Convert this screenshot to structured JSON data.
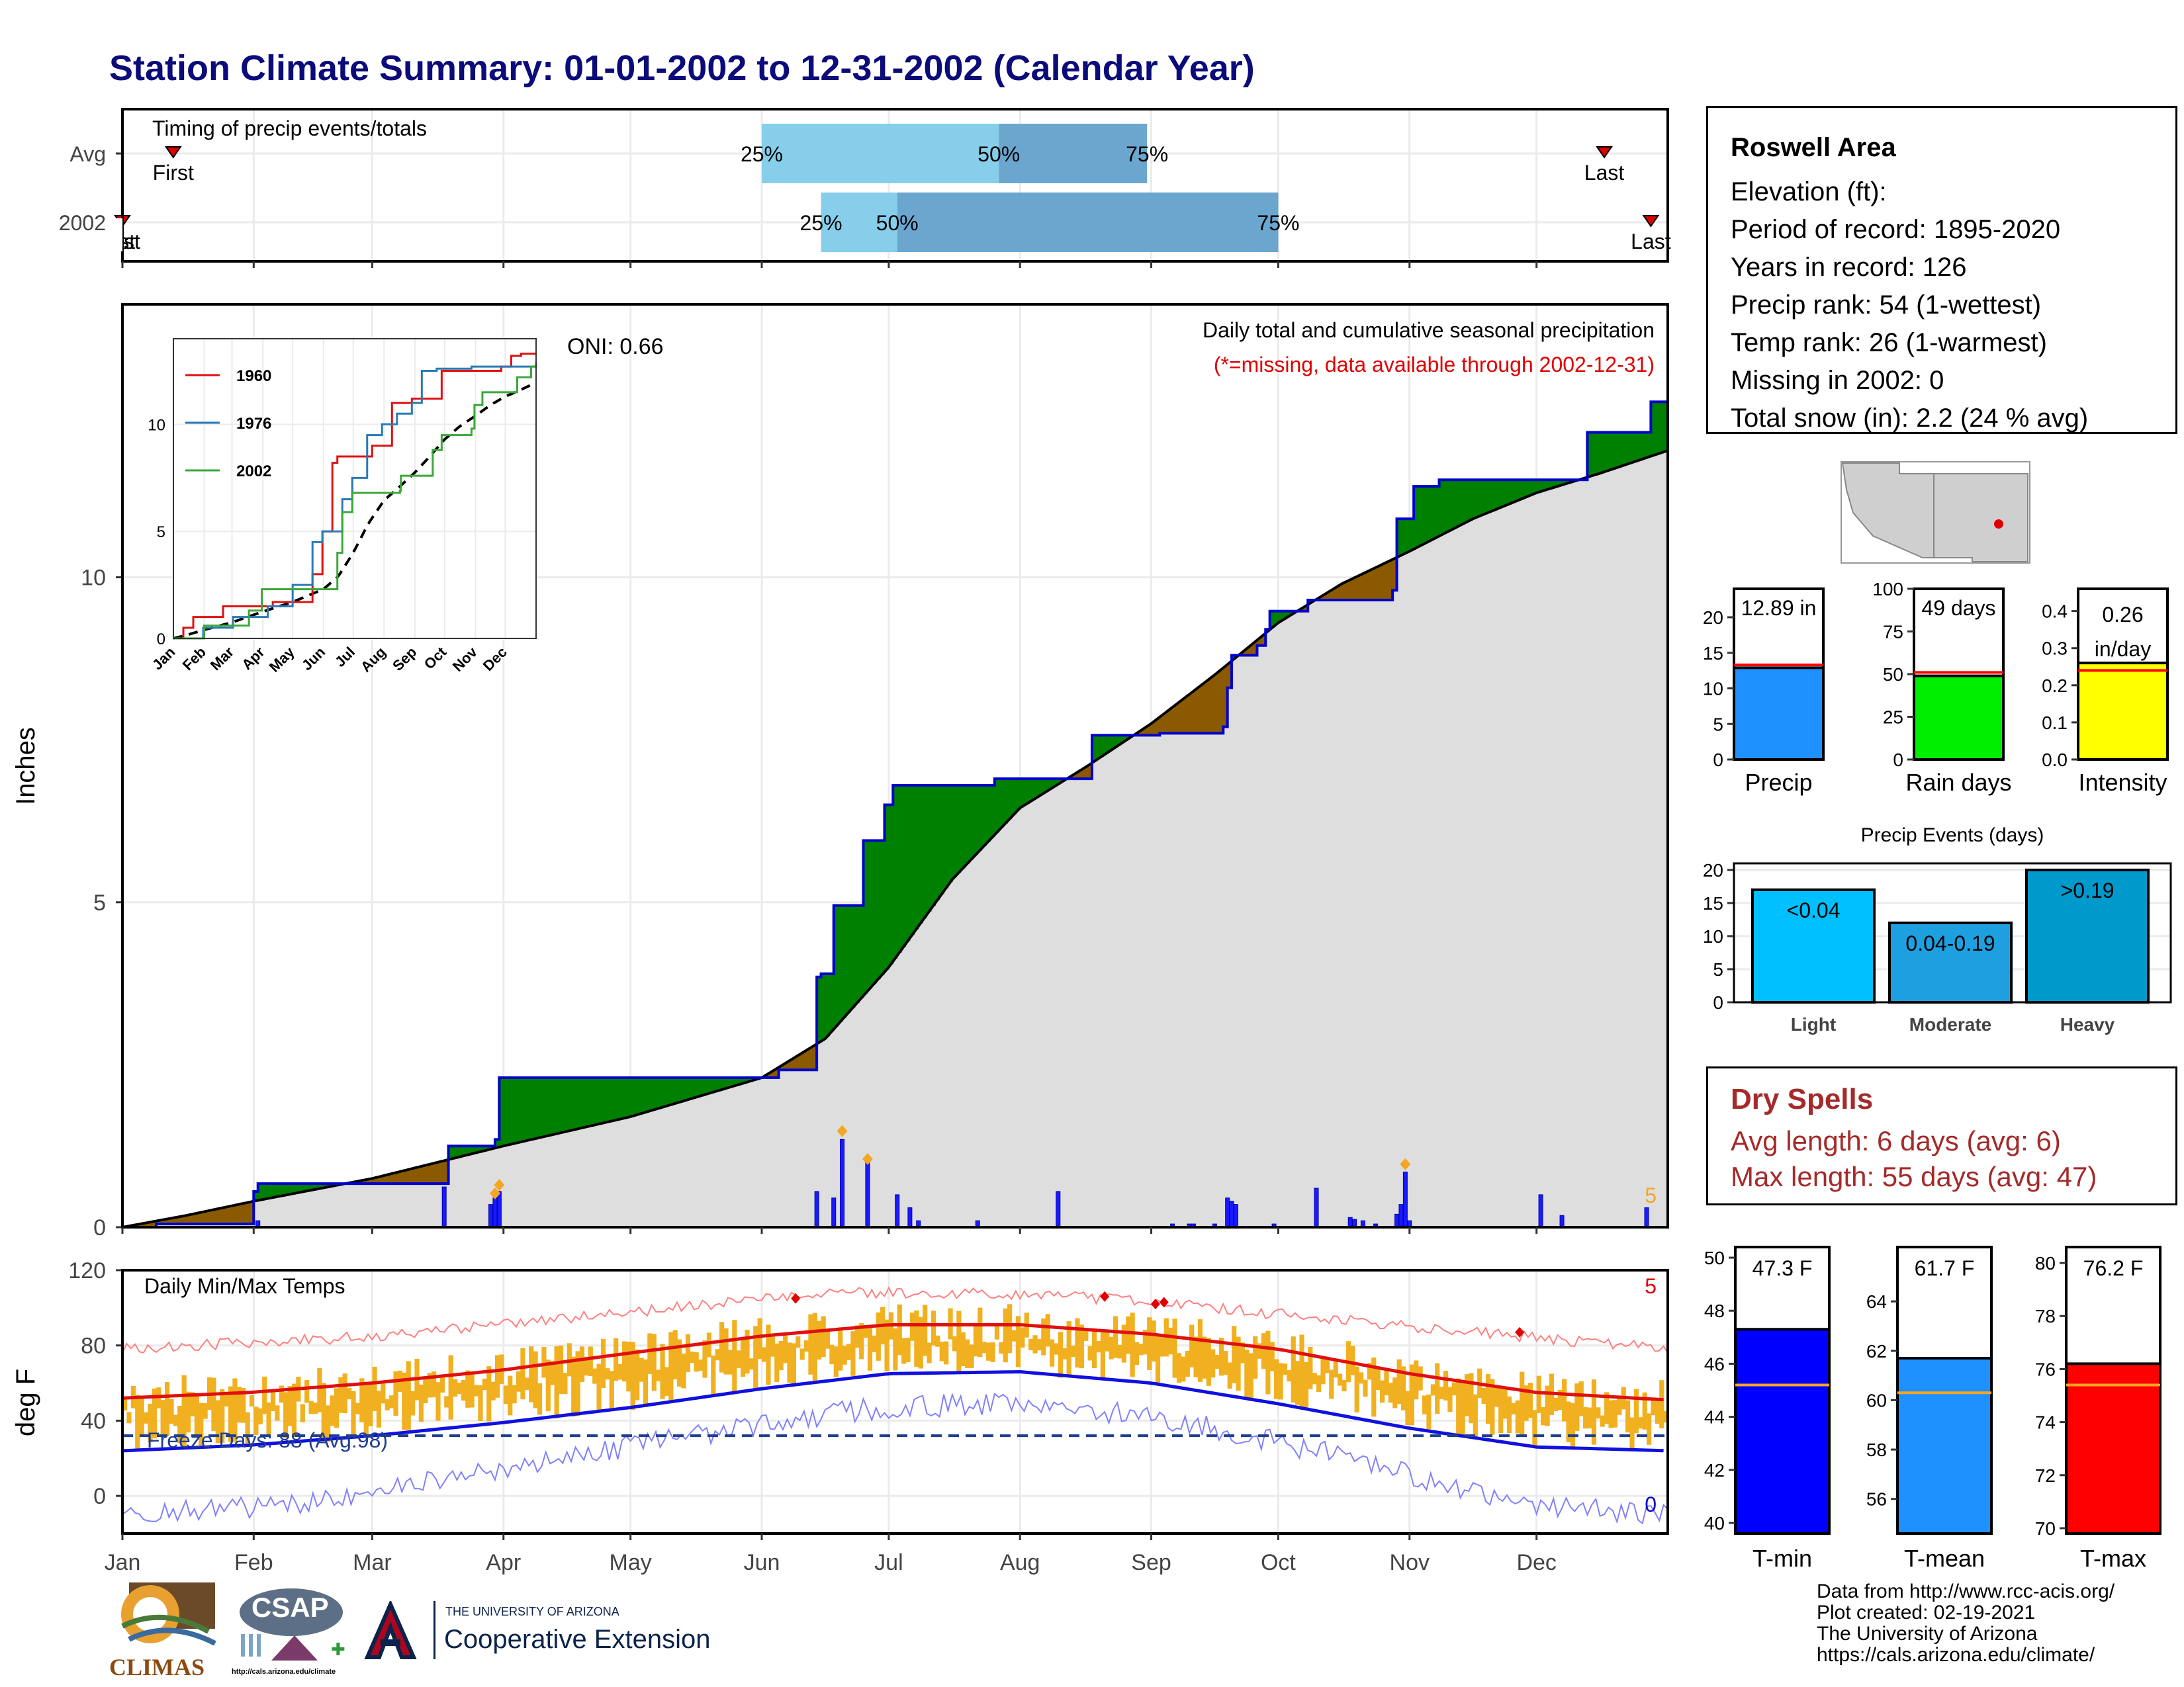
{
  "title": "Station Climate Summary: 01-01-2002 to 12-31-2002 (Calendar Year)",
  "station": {
    "name": "Roswell Area",
    "lines": [
      "Elevation (ft):",
      "Period of record: 1895-2020",
      "Years in record: 126",
      "Precip rank: 54 (1-wettest)",
      "Temp rank: 26 (1-warmest)",
      "Missing in 2002: 0",
      "Total snow (in): 2.2 (24 % avg)"
    ]
  },
  "dry_spells": {
    "title": "Dry Spells",
    "avg": "Avg length: 6 days (avg: 6)",
    "max": "Max length: 55 days (avg: 47)"
  },
  "credits": [
    "Data from http://www.rcc-acis.org/",
    "Plot created: 02-19-2021",
    "The University of Arizona",
    "https://cals.arizona.edu/climate/"
  ],
  "logos": {
    "climas": "CLIMAS",
    "csap": "CSAP",
    "csap_url": "http://cals.arizona.edu/climate",
    "ua_top": "THE UNIVERSITY OF ARIZONA",
    "ua_bottom": "Cooperative Extension"
  },
  "colors": {
    "title": "#0b0b7a",
    "light_blue": "#87ceeb",
    "mid_blue": "#6ba6cf",
    "green_above": "#008000",
    "brown_below": "#8b5a00",
    "cum_line": "#0000cd",
    "grey_area": "#dedede",
    "tmax": "#e01010",
    "tmin": "#1010e0",
    "bars_orange": "#f0b020"
  },
  "chart_data": [
    {
      "id": "timing",
      "type": "bar",
      "title": "Timing of precip events/totals",
      "rows": [
        "Avg",
        "2002"
      ],
      "first_label": "First",
      "last_label": "Last",
      "avg": {
        "first": "01-13",
        "q25": "06-01",
        "q50": "07-27",
        "q75": "08-31",
        "last": "12-17"
      },
      "y2002": {
        "first": "01-01",
        "q25": "06-15",
        "q50": "07-03",
        "q75": "10-01",
        "last": "12-28"
      },
      "pct_labels": [
        "25%",
        "50%",
        "75%"
      ]
    },
    {
      "id": "precip",
      "type": "area",
      "title": "Daily total and cumulative seasonal precipitation",
      "subtitle": "(*=missing, data available through 2002-12-31)",
      "ylabel": "Inches",
      "ylim": [
        0,
        14.2
      ],
      "yticks": [
        0,
        5,
        10
      ],
      "oni": "ONI: 0.66",
      "corner_label": "5",
      "cumulative_2002": [
        [
          0,
          0
        ],
        [
          8,
          0.05
        ],
        [
          30,
          0.05
        ],
        [
          31,
          0.55
        ],
        [
          32,
          0.67
        ],
        [
          50,
          0.67
        ],
        [
          76,
          0.67
        ],
        [
          77,
          1.25
        ],
        [
          84,
          1.25
        ],
        [
          88,
          1.35
        ],
        [
          89,
          2.3
        ],
        [
          140,
          2.3
        ],
        [
          155,
          2.42
        ],
        [
          164,
          3.85
        ],
        [
          165,
          3.9
        ],
        [
          168,
          4.95
        ],
        [
          175,
          5.95
        ],
        [
          180,
          6.5
        ],
        [
          182,
          6.8
        ],
        [
          206,
          6.9
        ],
        [
          228,
          6.9
        ],
        [
          229,
          7.57
        ],
        [
          241,
          7.57
        ],
        [
          245,
          7.6
        ],
        [
          260,
          7.7
        ],
        [
          261,
          8.3
        ],
        [
          262,
          8.8
        ],
        [
          268,
          8.95
        ],
        [
          270,
          9.2
        ],
        [
          271,
          9.48
        ],
        [
          278,
          9.48
        ],
        [
          280,
          9.65
        ],
        [
          300,
          9.8
        ],
        [
          301,
          10.9
        ],
        [
          305,
          11.4
        ],
        [
          311,
          11.5
        ],
        [
          345,
          11.5
        ],
        [
          346,
          12.23
        ],
        [
          360,
          12.23
        ],
        [
          361,
          12.7
        ],
        [
          365,
          12.89
        ]
      ],
      "cumulative_avg": [
        [
          0,
          0
        ],
        [
          15,
          0.18
        ],
        [
          31,
          0.4
        ],
        [
          59,
          0.75
        ],
        [
          90,
          1.25
        ],
        [
          120,
          1.7
        ],
        [
          151,
          2.3
        ],
        [
          166,
          2.9
        ],
        [
          181,
          4.0
        ],
        [
          196,
          5.35
        ],
        [
          212,
          6.45
        ],
        [
          228,
          7.1
        ],
        [
          243,
          7.75
        ],
        [
          258,
          8.5
        ],
        [
          273,
          9.3
        ],
        [
          288,
          9.9
        ],
        [
          304,
          10.4
        ],
        [
          319,
          10.9
        ],
        [
          334,
          11.3
        ],
        [
          349,
          11.6
        ],
        [
          365,
          11.95
        ]
      ],
      "daily": [
        [
          32,
          0.1
        ],
        [
          76,
          0.62
        ],
        [
          87,
          0.35
        ],
        [
          88,
          0.45
        ],
        [
          89,
          0.55
        ],
        [
          164,
          0.55
        ],
        [
          168,
          0.45
        ],
        [
          170,
          1.35
        ],
        [
          176,
          1.0
        ],
        [
          183,
          0.5
        ],
        [
          186,
          0.3
        ],
        [
          188,
          0.1
        ],
        [
          202,
          0.1
        ],
        [
          221,
          0.55
        ],
        [
          248,
          0.05
        ],
        [
          252,
          0.05
        ],
        [
          253,
          0.05
        ],
        [
          258,
          0.05
        ],
        [
          261,
          0.45
        ],
        [
          262,
          0.4
        ],
        [
          263,
          0.35
        ],
        [
          272,
          0.05
        ],
        [
          282,
          0.6
        ],
        [
          290,
          0.15
        ],
        [
          291,
          0.12
        ],
        [
          293,
          0.1
        ],
        [
          296,
          0.05
        ],
        [
          301,
          0.2
        ],
        [
          302,
          0.35
        ],
        [
          303,
          0.85
        ],
        [
          304,
          0.1
        ],
        [
          335,
          0.5
        ],
        [
          340,
          0.18
        ],
        [
          360,
          0.3
        ]
      ],
      "diamonds": [
        [
          88,
          0.52
        ],
        [
          89,
          0.65
        ],
        [
          170,
          1.48
        ],
        [
          176,
          1.05
        ],
        [
          303,
          0.97
        ]
      ]
    },
    {
      "id": "inset",
      "type": "line",
      "series": [
        {
          "name": "1960",
          "color": "#e01010",
          "points": [
            [
              0,
              0
            ],
            [
              10,
              0.5
            ],
            [
              20,
              1.0
            ],
            [
              40,
              1.0
            ],
            [
              50,
              1.5
            ],
            [
              80,
              1.5
            ],
            [
              100,
              1.7
            ],
            [
              130,
              1.7
            ],
            [
              140,
              3.0
            ],
            [
              150,
              5.0
            ],
            [
              160,
              8.2
            ],
            [
              165,
              8.5
            ],
            [
              190,
              8.5
            ],
            [
              200,
              9.0
            ],
            [
              215,
              9.0
            ],
            [
              220,
              11.0
            ],
            [
              240,
              11.2
            ],
            [
              260,
              11.2
            ],
            [
              270,
              12.5
            ],
            [
              300,
              12.5
            ],
            [
              330,
              12.7
            ],
            [
              340,
              13.2
            ],
            [
              350,
              13.3
            ],
            [
              365,
              13.3
            ]
          ]
        },
        {
          "name": "1976",
          "color": "#2a7ab5",
          "points": [
            [
              0,
              0
            ],
            [
              20,
              0
            ],
            [
              30,
              0.5
            ],
            [
              55,
              0.5
            ],
            [
              60,
              1.0
            ],
            [
              90,
              1.0
            ],
            [
              95,
              1.5
            ],
            [
              115,
              1.5
            ],
            [
              120,
              2.5
            ],
            [
              140,
              4.5
            ],
            [
              150,
              5.0
            ],
            [
              170,
              6.5
            ],
            [
              180,
              7.5
            ],
            [
              195,
              9.5
            ],
            [
              210,
              10.0
            ],
            [
              225,
              10.5
            ],
            [
              240,
              11.0
            ],
            [
              250,
              12.5
            ],
            [
              265,
              12.6
            ],
            [
              280,
              12.6
            ],
            [
              300,
              12.7
            ],
            [
              330,
              12.7
            ],
            [
              365,
              12.7
            ]
          ]
        },
        {
          "name": "2002",
          "color": "#3aa83a",
          "points": [
            [
              0,
              0
            ],
            [
              31,
              0.6
            ],
            [
              76,
              1.3
            ],
            [
              89,
              2.3
            ],
            [
              140,
              2.3
            ],
            [
              165,
              4.0
            ],
            [
              170,
              5.9
            ],
            [
              180,
              6.8
            ],
            [
              228,
              6.9
            ],
            [
              229,
              7.6
            ],
            [
              261,
              8.8
            ],
            [
              270,
              9.5
            ],
            [
              300,
              9.8
            ],
            [
              303,
              10.9
            ],
            [
              311,
              11.5
            ],
            [
              346,
              12.2
            ],
            [
              360,
              12.7
            ],
            [
              365,
              12.9
            ]
          ]
        }
      ],
      "ylim": [
        0,
        14
      ],
      "yticks": [
        0,
        5,
        10
      ],
      "months": [
        "Jan",
        "Feb",
        "Mar",
        "Apr",
        "May",
        "Jun",
        "Jul",
        "Aug",
        "Sep",
        "Oct",
        "Nov",
        "Dec"
      ]
    },
    {
      "id": "temps",
      "type": "line",
      "title": "Daily Min/Max Temps",
      "ylabel": "deg F",
      "ylim": [
        -20,
        120
      ],
      "yticks": [
        0,
        40,
        80,
        120
      ],
      "freeze_label": "Freeze Days: 88 (Avg:98)",
      "freeze_line": 32,
      "corner_top": "5",
      "corner_bottom": "0",
      "avg_max": [
        [
          0,
          52
        ],
        [
          30,
          55
        ],
        [
          59,
          60
        ],
        [
          90,
          67
        ],
        [
          120,
          76
        ],
        [
          151,
          85
        ],
        [
          181,
          91
        ],
        [
          212,
          91
        ],
        [
          243,
          86
        ],
        [
          273,
          78
        ],
        [
          304,
          65
        ],
        [
          334,
          55
        ],
        [
          365,
          51
        ]
      ],
      "avg_min": [
        [
          0,
          24
        ],
        [
          30,
          27
        ],
        [
          59,
          32
        ],
        [
          90,
          39
        ],
        [
          120,
          47
        ],
        [
          151,
          57
        ],
        [
          181,
          65
        ],
        [
          212,
          66
        ],
        [
          243,
          60
        ],
        [
          273,
          49
        ],
        [
          304,
          36
        ],
        [
          334,
          26
        ],
        [
          365,
          24
        ]
      ],
      "record_max": [
        [
          0,
          78
        ],
        [
          60,
          85
        ],
        [
          120,
          98
        ],
        [
          170,
          108
        ],
        [
          200,
          108
        ],
        [
          240,
          104
        ],
        [
          280,
          95
        ],
        [
          330,
          85
        ],
        [
          365,
          78
        ]
      ],
      "record_min": [
        [
          0,
          -10
        ],
        [
          40,
          -5
        ],
        [
          90,
          15
        ],
        [
          130,
          30
        ],
        [
          170,
          45
        ],
        [
          210,
          50
        ],
        [
          250,
          40
        ],
        [
          290,
          20
        ],
        [
          330,
          -5
        ],
        [
          365,
          -10
        ]
      ],
      "red_diamonds": [
        [
          159,
          105
        ],
        [
          232,
          106
        ],
        [
          244,
          102
        ],
        [
          246,
          103
        ],
        [
          330,
          87
        ]
      ],
      "months": [
        "Jan",
        "Feb",
        "Mar",
        "Apr",
        "May",
        "Jun",
        "Jul",
        "Aug",
        "Sep",
        "Oct",
        "Nov",
        "Dec"
      ]
    },
    {
      "id": "mini_precip",
      "type": "bar",
      "panels": [
        {
          "label": "Precip",
          "value": 12.89,
          "value_label": "12.89 in",
          "avg": 13.3,
          "ylim": [
            0,
            24
          ],
          "yticks": [
            0,
            5,
            10,
            15,
            20
          ],
          "color": "#1e90ff"
        },
        {
          "label": "Rain days",
          "value": 49,
          "value_label": "49 days",
          "avg": 51,
          "ylim": [
            0,
            100
          ],
          "yticks": [
            0,
            25,
            50,
            75,
            100
          ],
          "color": "#00ee00"
        },
        {
          "label": "Intensity",
          "value": 0.26,
          "value_label": "0.26 in/day",
          "avg": 0.24,
          "ylim": [
            0,
            0.46
          ],
          "yticks": [
            0.0,
            0.1,
            0.2,
            0.3,
            0.4
          ],
          "color": "#ffff00"
        }
      ]
    },
    {
      "id": "events",
      "type": "bar",
      "title": "Precip Events (days)",
      "categories": [
        "Light",
        "Moderate",
        "Heavy"
      ],
      "labels": [
        "<0.04",
        "0.04-0.19",
        ">0.19"
      ],
      "values": [
        17,
        12,
        20
      ],
      "ylim": [
        0,
        21
      ],
      "yticks": [
        0,
        5,
        10,
        15,
        20
      ],
      "colors": [
        "#00bfff",
        "#1ea0e0",
        "#0099cc"
      ]
    },
    {
      "id": "mini_temps",
      "type": "bar",
      "panels": [
        {
          "label": "T-min",
          "value": 47.3,
          "value_label": "47.3 F",
          "avg": 45.2,
          "ylim": [
            39.6,
            50.4
          ],
          "yticks": [
            40,
            42,
            44,
            46,
            48,
            50
          ],
          "color": "#0000ff"
        },
        {
          "label": "T-mean",
          "value": 61.7,
          "value_label": "61.7 F",
          "avg": 60.3,
          "ylim": [
            54.6,
            66.2
          ],
          "yticks": [
            56,
            58,
            60,
            62,
            64
          ],
          "color": "#1e90ff"
        },
        {
          "label": "T-max",
          "value": 76.2,
          "value_label": "76.2 F",
          "avg": 75.4,
          "ylim": [
            69.8,
            80.6
          ],
          "yticks": [
            70,
            72,
            74,
            76,
            78,
            80
          ],
          "color": "#ff0000"
        }
      ]
    }
  ]
}
